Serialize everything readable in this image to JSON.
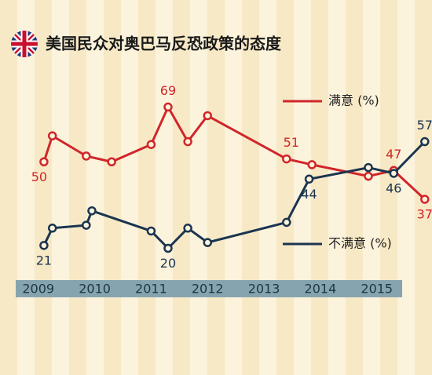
{
  "chart_data": {
    "type": "line",
    "title": "美国民众对奥巴马反恐政策的态度",
    "xlim": [
      2008.6,
      2015.95
    ],
    "ylim": [
      0,
      80
    ],
    "xticks": [
      2009,
      2010,
      2011,
      2012,
      2013,
      2014,
      2015
    ],
    "series": [
      {
        "name": "满意 (%)",
        "color": "#d0262b",
        "x": [
          2009.1,
          2009.25,
          2009.85,
          2010.3,
          2011.0,
          2011.3,
          2011.65,
          2012.0,
          2013.4,
          2013.85,
          2014.85,
          2015.3,
          2015.85
        ],
        "values": [
          50,
          59,
          52,
          50,
          56,
          69,
          57,
          66,
          51,
          49,
          45,
          47,
          37
        ],
        "value_labels": [
          "50",
          null,
          null,
          null,
          null,
          "69",
          null,
          null,
          "51",
          null,
          null,
          "47",
          "37"
        ]
      },
      {
        "name": "不满意 (%)",
        "color": "#1b3550",
        "x": [
          2009.1,
          2009.25,
          2009.85,
          2009.95,
          2011.0,
          2011.3,
          2011.65,
          2012.0,
          2013.4,
          2013.8,
          2014.85,
          2015.3,
          2015.85
        ],
        "values": [
          21,
          27,
          28,
          33,
          26,
          20,
          27,
          22,
          29,
          44,
          48,
          46,
          57
        ],
        "value_labels": [
          "21",
          null,
          null,
          null,
          null,
          "20",
          null,
          null,
          null,
          "44",
          null,
          "46",
          "57"
        ]
      }
    ]
  }
}
